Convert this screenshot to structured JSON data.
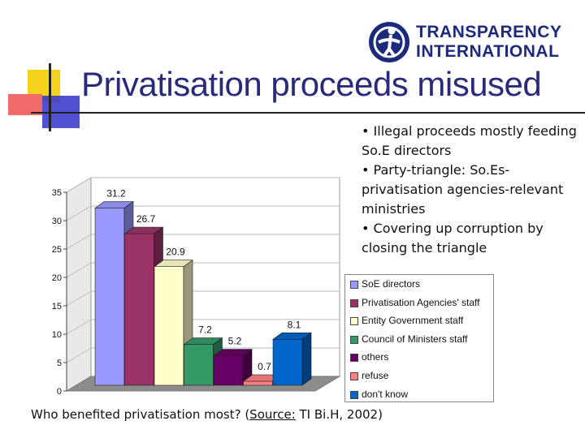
{
  "slide": {
    "title": "Privatisation proceeds misused",
    "logo": {
      "line1": "TRANSPARENCY",
      "line2": "INTERNATIONAL"
    },
    "bullets": [
      "• Illegal proceeds mostly feeding So.E directors",
      "• Party-triangle: So.Es-privatisation agencies-relevant ministries",
      "• Covering up corruption by closing the triangle"
    ],
    "caption": {
      "prefix": "Who benefited privatisation most? (",
      "source_label": "Source:",
      "suffix": " TI Bi.H, 2002)"
    },
    "colors": {
      "title": "#2a2a7a",
      "logo": "#1b2a7c"
    }
  },
  "chart_data": {
    "type": "bar",
    "style": "3d",
    "categories": [
      "SoE directors",
      "Privatisation Agencies' staff",
      "Entity Government staff",
      "Council of Ministers staff",
      "others",
      "refuse",
      "don't know"
    ],
    "values": [
      31.2,
      26.7,
      20.9,
      7.2,
      5.2,
      0.7,
      8.1
    ],
    "value_labels": [
      "31.2",
      "26.7",
      "20.9",
      "7.2",
      "5.2",
      "0.7",
      "8.1"
    ],
    "colors": [
      "#9999ff",
      "#993366",
      "#ffffcc",
      "#339966",
      "#660066",
      "#ff8080",
      "#0066cc"
    ],
    "yticks": [
      "0",
      "5",
      "10",
      "15",
      "20",
      "25",
      "30",
      "35"
    ],
    "ylim": [
      0,
      35
    ],
    "grid": true,
    "legend": "right"
  }
}
